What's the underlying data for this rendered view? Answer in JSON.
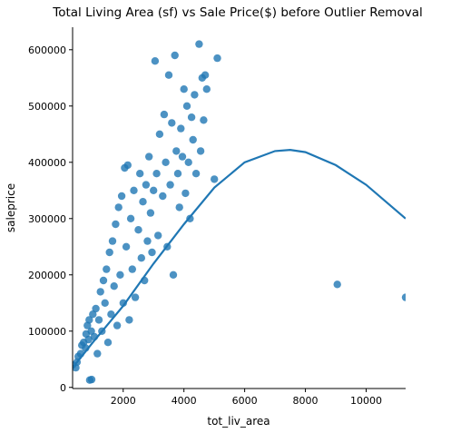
{
  "chart_data": {
    "type": "scatter",
    "title": "Total Living Area (sf) vs Sale Price($) before Outlier Removal",
    "xlabel": "tot_liv_area",
    "ylabel": "saleprice",
    "xlim": [
      334,
      11300
    ],
    "ylim": [
      -2000,
      640000
    ],
    "x_ticks": [
      2000,
      4000,
      6000,
      8000,
      10000
    ],
    "x_tick_labels": [
      "2000",
      "4000",
      "6000",
      "8000",
      "10000"
    ],
    "y_ticks": [
      0,
      100000,
      200000,
      300000,
      400000,
      500000,
      600000
    ],
    "y_tick_labels": [
      "0",
      "100000",
      "200000",
      "300000",
      "400000",
      "500000",
      "600000"
    ],
    "grid": false,
    "colors": {
      "points": "#1f77b4",
      "fit_line": "#1f77b4"
    },
    "fit": {
      "kind": "quadratic",
      "points": [
        {
          "x": 334,
          "y": 35000
        },
        {
          "x": 1000,
          "y": 80000
        },
        {
          "x": 2000,
          "y": 145000
        },
        {
          "x": 3000,
          "y": 220000
        },
        {
          "x": 4000,
          "y": 290000
        },
        {
          "x": 5000,
          "y": 355000
        },
        {
          "x": 6000,
          "y": 400000
        },
        {
          "x": 7000,
          "y": 420000
        },
        {
          "x": 7500,
          "y": 422000
        },
        {
          "x": 8000,
          "y": 418000
        },
        {
          "x": 9000,
          "y": 395000
        },
        {
          "x": 10000,
          "y": 360000
        },
        {
          "x": 11300,
          "y": 300000
        }
      ]
    },
    "series": [
      {
        "points": [
          {
            "x": 334,
            "y": 40000
          },
          {
            "x": 438,
            "y": 35000
          },
          {
            "x": 480,
            "y": 45000
          },
          {
            "x": 520,
            "y": 55000
          },
          {
            "x": 600,
            "y": 60000
          },
          {
            "x": 640,
            "y": 75000
          },
          {
            "x": 700,
            "y": 80000
          },
          {
            "x": 760,
            "y": 70000
          },
          {
            "x": 780,
            "y": 95000
          },
          {
            "x": 820,
            "y": 110000
          },
          {
            "x": 860,
            "y": 85000
          },
          {
            "x": 880,
            "y": 120000
          },
          {
            "x": 900,
            "y": 13000
          },
          {
            "x": 960,
            "y": 14000
          },
          {
            "x": 950,
            "y": 100000
          },
          {
            "x": 1000,
            "y": 130000
          },
          {
            "x": 1050,
            "y": 90000
          },
          {
            "x": 1100,
            "y": 140000
          },
          {
            "x": 1150,
            "y": 60000
          },
          {
            "x": 1200,
            "y": 120000
          },
          {
            "x": 1250,
            "y": 170000
          },
          {
            "x": 1300,
            "y": 100000
          },
          {
            "x": 1350,
            "y": 190000
          },
          {
            "x": 1400,
            "y": 150000
          },
          {
            "x": 1450,
            "y": 210000
          },
          {
            "x": 1500,
            "y": 80000
          },
          {
            "x": 1550,
            "y": 240000
          },
          {
            "x": 1600,
            "y": 130000
          },
          {
            "x": 1650,
            "y": 260000
          },
          {
            "x": 1700,
            "y": 180000
          },
          {
            "x": 1750,
            "y": 290000
          },
          {
            "x": 1800,
            "y": 110000
          },
          {
            "x": 1850,
            "y": 320000
          },
          {
            "x": 1900,
            "y": 200000
          },
          {
            "x": 1950,
            "y": 340000
          },
          {
            "x": 2000,
            "y": 150000
          },
          {
            "x": 2050,
            "y": 390000
          },
          {
            "x": 2100,
            "y": 250000
          },
          {
            "x": 2150,
            "y": 395000
          },
          {
            "x": 2200,
            "y": 120000
          },
          {
            "x": 2250,
            "y": 300000
          },
          {
            "x": 2300,
            "y": 210000
          },
          {
            "x": 2350,
            "y": 350000
          },
          {
            "x": 2400,
            "y": 160000
          },
          {
            "x": 2500,
            "y": 280000
          },
          {
            "x": 2550,
            "y": 380000
          },
          {
            "x": 2600,
            "y": 230000
          },
          {
            "x": 2650,
            "y": 330000
          },
          {
            "x": 2700,
            "y": 190000
          },
          {
            "x": 2750,
            "y": 360000
          },
          {
            "x": 2800,
            "y": 260000
          },
          {
            "x": 2850,
            "y": 410000
          },
          {
            "x": 2900,
            "y": 310000
          },
          {
            "x": 2950,
            "y": 240000
          },
          {
            "x": 3000,
            "y": 350000
          },
          {
            "x": 3050,
            "y": 580000
          },
          {
            "x": 3100,
            "y": 380000
          },
          {
            "x": 3150,
            "y": 270000
          },
          {
            "x": 3200,
            "y": 450000
          },
          {
            "x": 3300,
            "y": 340000
          },
          {
            "x": 3350,
            "y": 485000
          },
          {
            "x": 3400,
            "y": 400000
          },
          {
            "x": 3450,
            "y": 250000
          },
          {
            "x": 3500,
            "y": 555000
          },
          {
            "x": 3550,
            "y": 360000
          },
          {
            "x": 3600,
            "y": 470000
          },
          {
            "x": 3650,
            "y": 200000
          },
          {
            "x": 3700,
            "y": 590000
          },
          {
            "x": 3750,
            "y": 420000
          },
          {
            "x": 3800,
            "y": 380000
          },
          {
            "x": 3850,
            "y": 320000
          },
          {
            "x": 3900,
            "y": 460000
          },
          {
            "x": 3950,
            "y": 410000
          },
          {
            "x": 4000,
            "y": 530000
          },
          {
            "x": 4050,
            "y": 345000
          },
          {
            "x": 4100,
            "y": 500000
          },
          {
            "x": 4150,
            "y": 400000
          },
          {
            "x": 4200,
            "y": 300000
          },
          {
            "x": 4250,
            "y": 480000
          },
          {
            "x": 4300,
            "y": 440000
          },
          {
            "x": 4350,
            "y": 520000
          },
          {
            "x": 4400,
            "y": 380000
          },
          {
            "x": 4500,
            "y": 610000
          },
          {
            "x": 4550,
            "y": 420000
          },
          {
            "x": 4600,
            "y": 550000
          },
          {
            "x": 4650,
            "y": 475000
          },
          {
            "x": 4700,
            "y": 555000
          },
          {
            "x": 4750,
            "y": 530000
          },
          {
            "x": 5000,
            "y": 370000
          },
          {
            "x": 5100,
            "y": 585000
          },
          {
            "x": 9050,
            "y": 183000
          },
          {
            "x": 11300,
            "y": 160000
          }
        ]
      }
    ]
  }
}
